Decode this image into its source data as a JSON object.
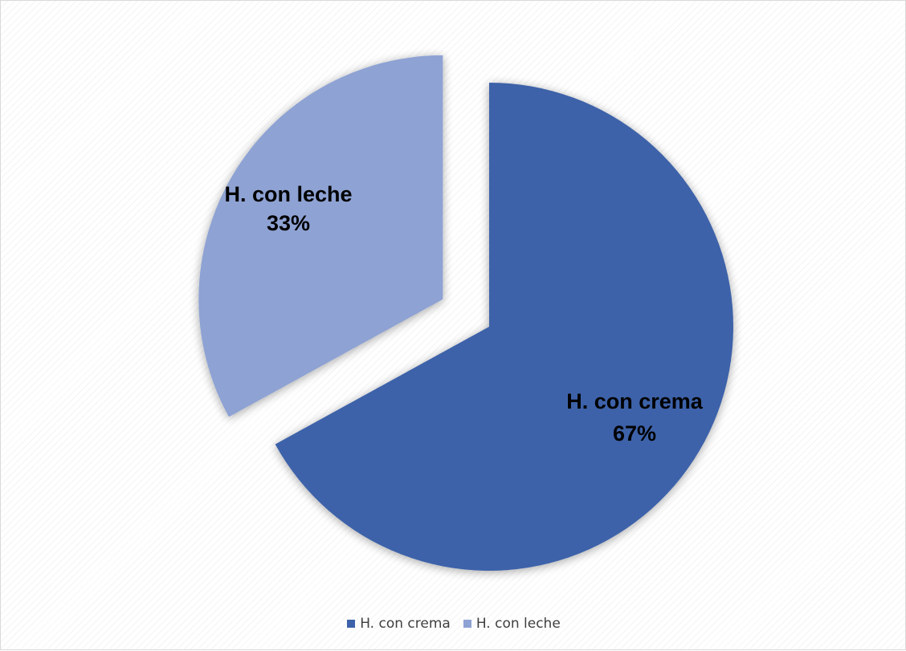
{
  "chart_data": {
    "type": "pie",
    "title": "",
    "categories": [
      "H. con crema",
      "H. con leche"
    ],
    "values": [
      67,
      33
    ],
    "labels": [
      "67%",
      "33%"
    ],
    "colors": [
      "#3d62a9",
      "#8ea2d3"
    ],
    "exploded": [
      false,
      true
    ],
    "legend_position": "bottom",
    "start_angle_deg": 0,
    "direction": "clockwise"
  },
  "legend": {
    "items": [
      {
        "label": "H. con crema",
        "color": "#3d62a9"
      },
      {
        "label": "H. con leche",
        "color": "#8ea2d3"
      }
    ]
  }
}
